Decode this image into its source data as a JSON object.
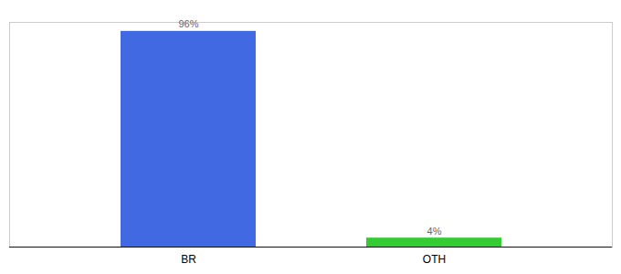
{
  "chart_data": {
    "type": "bar",
    "categories": [
      "BR",
      "OTH"
    ],
    "values": [
      96,
      4
    ],
    "value_labels": [
      "96%",
      "4%"
    ],
    "colors": [
      "#4169e1",
      "#33cc33"
    ],
    "ylim": [
      0,
      100
    ],
    "grid": false,
    "data_labels": true,
    "tick_labels": "x"
  }
}
